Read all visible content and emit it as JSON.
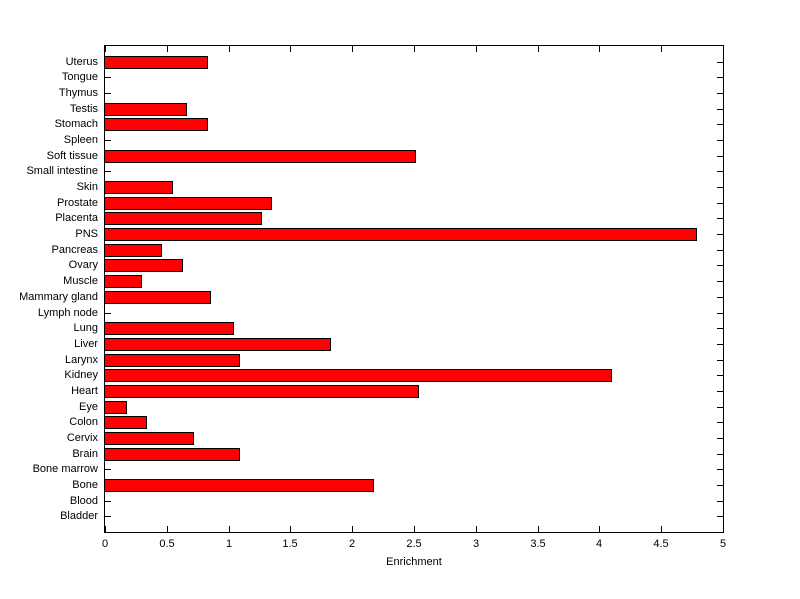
{
  "chart_data": {
    "type": "bar",
    "orientation": "horizontal",
    "title": "",
    "xlabel": "Enrichment",
    "ylabel": "",
    "xlim": [
      0,
      5
    ],
    "x_ticks": [
      0,
      0.5,
      1,
      1.5,
      2,
      2.5,
      3,
      3.5,
      4,
      4.5,
      5
    ],
    "x_tick_labels": [
      "0",
      "0.5",
      "1",
      "1.5",
      "2",
      "2.5",
      "3",
      "3.5",
      "4",
      "4.5",
      "5"
    ],
    "grid": false,
    "legend": "none",
    "bar_fill_color": "#FF0000",
    "bar_edge_color": "#000000",
    "axis_color": "#000000",
    "background_color": "#FFFFFF",
    "categories": [
      "Uterus",
      "Tongue",
      "Thymus",
      "Testis",
      "Stomach",
      "Spleen",
      "Soft tissue",
      "Small intestine",
      "Skin",
      "Prostate",
      "Placenta",
      "PNS",
      "Pancreas",
      "Ovary",
      "Muscle",
      "Mammary gland",
      "Lymph node",
      "Lung",
      "Liver",
      "Larynx",
      "Kidney",
      "Heart",
      "Eye",
      "Colon",
      "Cervix",
      "Brain",
      "Bone marrow",
      "Bone",
      "Blood",
      "Bladder"
    ],
    "values": [
      0.83,
      0,
      0,
      0.66,
      0.83,
      0,
      2.52,
      0,
      0.55,
      1.35,
      1.27,
      4.79,
      0.46,
      0.63,
      0.3,
      0.86,
      0,
      1.04,
      1.83,
      1.09,
      4.1,
      2.54,
      0.18,
      0.34,
      0.72,
      1.09,
      0,
      2.18,
      0,
      0
    ]
  }
}
